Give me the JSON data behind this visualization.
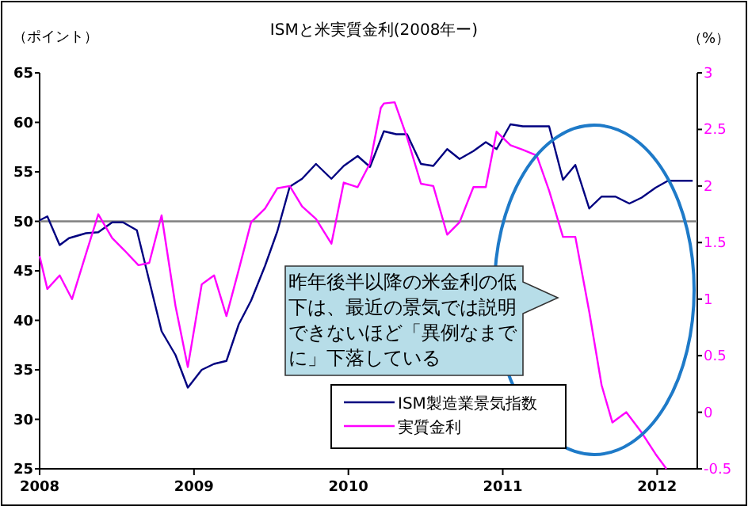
{
  "chart_data": {
    "type": "line",
    "title": "ISMと米実質金利(2008年ー)",
    "ylabel": "（ポイント）",
    "y2label": "（%）",
    "xlim": [
      2008,
      2012.26
    ],
    "xticks": [
      2008,
      2009,
      2010,
      2011,
      2012
    ],
    "ylim": [
      25,
      65
    ],
    "yticks": [
      25,
      30,
      35,
      40,
      45,
      50,
      55,
      60,
      65
    ],
    "y2lim": [
      -0.5,
      3
    ],
    "y2ticks": [
      -0.5,
      0,
      0.5,
      1,
      1.5,
      2,
      2.5,
      3
    ],
    "ref_lines": [
      {
        "axis": "y",
        "value": 50,
        "color": "#808080"
      }
    ],
    "legend": "bottom right",
    "annotations": [
      "昨年後半以降の米金利の低下は、最近の景気では説明できないほど「異例なまでに」下落している"
    ],
    "series": [
      {
        "name": "ISM製造業景気指数",
        "color": "#000080",
        "x": [
          2008.0,
          2008.05,
          2008.13,
          2008.19,
          2008.3,
          2008.38,
          2008.47,
          2008.54,
          2008.63,
          2008.71,
          2008.79,
          2008.88,
          2008.96,
          2009.05,
          2009.13,
          2009.21,
          2009.29,
          2009.37,
          2009.46,
          2009.54,
          2009.62,
          2009.7,
          2009.79,
          2009.89,
          2009.97,
          2010.06,
          2010.14,
          2010.23,
          2010.31,
          2010.38,
          2010.47,
          2010.55,
          2010.64,
          2010.72,
          2010.81,
          2010.89,
          2010.96,
          2011.05,
          2011.13,
          2011.3,
          2011.39,
          2011.47,
          2011.56,
          2011.64,
          2011.73,
          2011.82,
          2011.9,
          2011.99,
          2012.07,
          2012.23
        ],
        "values": [
          50.1,
          50.5,
          47.6,
          48.3,
          48.8,
          48.9,
          49.9,
          49.9,
          49.1,
          44,
          38.9,
          36.5,
          33.2,
          35,
          35.6,
          35.9,
          39.6,
          42,
          45.5,
          49,
          53.5,
          54.3,
          55.8,
          54.3,
          55.6,
          56.6,
          55.5,
          59.1,
          58.8,
          58.8,
          55.8,
          55.6,
          57.3,
          56.3,
          57.1,
          58,
          57.3,
          59.8,
          59.6,
          59.6,
          54.2,
          55.7,
          51.3,
          52.5,
          52.5,
          51.8,
          52.4,
          53.4,
          54.1,
          54.1
        ]
      },
      {
        "name": "実質金利",
        "color": "#ff00ff",
        "axis": "y2",
        "x": [
          2008.0,
          2008.05,
          2008.13,
          2008.21,
          2008.3,
          2008.38,
          2008.47,
          2008.55,
          2008.64,
          2008.71,
          2008.79,
          2008.88,
          2008.96,
          2009.05,
          2009.13,
          2009.21,
          2009.29,
          2009.37,
          2009.46,
          2009.54,
          2009.62,
          2009.7,
          2009.79,
          2009.89,
          2009.97,
          2010.06,
          2010.14,
          2010.21,
          2010.23,
          2010.3,
          2010.38,
          2010.47,
          2010.55,
          2010.64,
          2010.72,
          2010.81,
          2010.89,
          2010.96,
          2011.05,
          2011.13,
          2011.22,
          2011.3,
          2011.39,
          2011.47,
          2011.56,
          2011.64,
          2011.71,
          2011.8,
          2011.9,
          2011.99,
          2012.06
        ],
        "values": [
          1.38,
          1.09,
          1.21,
          1.0,
          1.4,
          1.75,
          1.54,
          1.43,
          1.3,
          1.32,
          1.74,
          0.94,
          0.4,
          1.13,
          1.21,
          0.85,
          1.26,
          1.68,
          1.8,
          1.98,
          2.0,
          1.82,
          1.71,
          1.49,
          2.03,
          1.99,
          2.2,
          2.69,
          2.73,
          2.74,
          2.43,
          2.02,
          2.0,
          1.57,
          1.68,
          1.99,
          1.99,
          2.48,
          2.36,
          2.32,
          2.27,
          1.96,
          1.55,
          1.55,
          0.89,
          0.24,
          -0.09,
          0.0,
          -0.18,
          -0.37,
          -0.5
        ]
      }
    ]
  }
}
